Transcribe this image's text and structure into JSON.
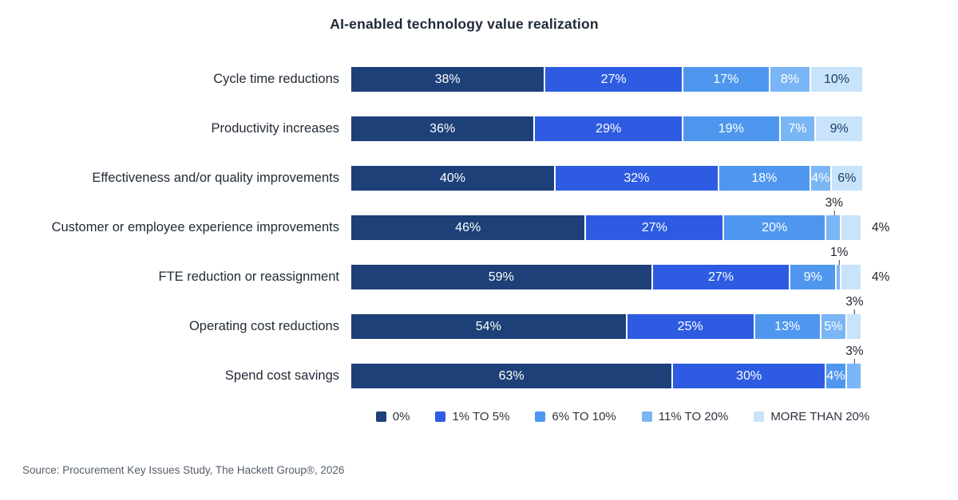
{
  "title": "AI-enabled technology value realization",
  "source": "Source: Procurement Key Issues Study, The Hackett Group®, 2026",
  "colors": {
    "background": "#ffffff",
    "title_text": "#1f2937",
    "category_text": "#222b36",
    "outside_label_text": "#20262e",
    "light_segment_text": "#1c3f66",
    "white_segment_text": "#ffffff",
    "source_text": "#545e6a"
  },
  "chart_data": {
    "type": "bar",
    "orientation": "horizontal",
    "stacked": true,
    "unit": "%",
    "xlim": [
      0,
      100
    ],
    "grid": false,
    "legend_position": "bottom",
    "title": "AI-enabled technology value realization",
    "categories": [
      "Cycle time reductions",
      "Productivity increases",
      "Effectiveness and/or quality improvements",
      "Customer or employee experience improvements",
      "FTE reduction or reassignment",
      "Operating cost reductions",
      "Spend cost savings"
    ],
    "series": [
      {
        "name": "0%",
        "color": "#1d4078",
        "text_color": "#ffffff",
        "values": [
          38,
          36,
          40,
          46,
          59,
          54,
          63
        ]
      },
      {
        "name": "1% TO 5%",
        "color": "#2d5ce2",
        "text_color": "#ffffff",
        "values": [
          27,
          29,
          32,
          27,
          27,
          25,
          30
        ]
      },
      {
        "name": "6% TO 10%",
        "color": "#4f97ee",
        "text_color": "#ffffff",
        "values": [
          17,
          19,
          18,
          20,
          9,
          13,
          4
        ]
      },
      {
        "name": "11% TO 20%",
        "color": "#7ab6f5",
        "text_color": "#ffffff",
        "values": [
          8,
          7,
          4,
          3,
          1,
          5,
          3
        ]
      },
      {
        "name": "MORE THAN 20%",
        "color": "#c8e3fa",
        "text_color": "#1c3f66",
        "values": [
          10,
          9,
          6,
          4,
          4,
          3,
          0
        ]
      }
    ],
    "label_placement": [
      [
        "inside",
        "inside",
        "inside",
        "inside",
        "inside"
      ],
      [
        "inside",
        "inside",
        "inside",
        "inside",
        "inside"
      ],
      [
        "inside",
        "inside",
        "inside",
        "inside",
        "inside"
      ],
      [
        "inside",
        "inside",
        "inside",
        "above",
        "right"
      ],
      [
        "inside",
        "inside",
        "inside",
        "above",
        "right"
      ],
      [
        "inside",
        "inside",
        "inside",
        "inside",
        "above"
      ],
      [
        "inside",
        "inside",
        "inside",
        "above",
        "none"
      ]
    ]
  }
}
